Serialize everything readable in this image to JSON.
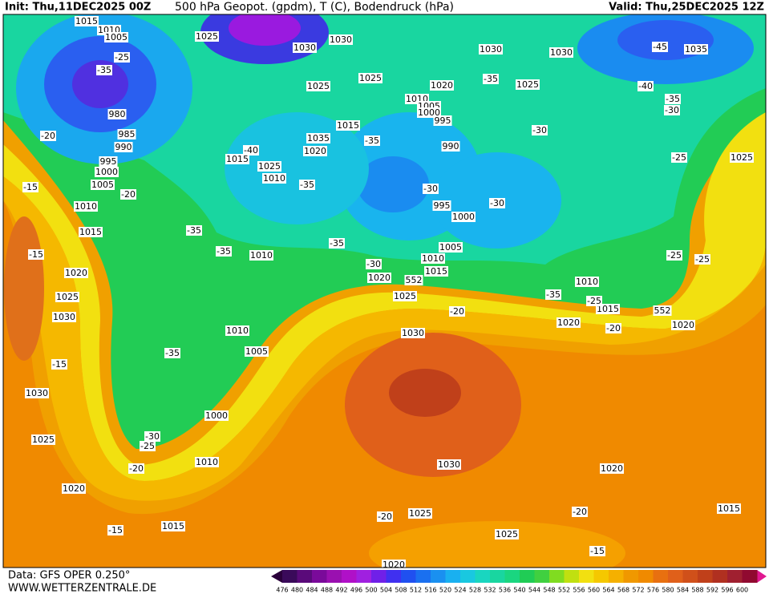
{
  "header": {
    "init": "Init: Thu,11DEC2025 00Z",
    "title": "500 hPa Geopot. (gpdm), T (C), Bodendruck (hPa)",
    "valid": "Valid: Thu,25DEC2025 12Z"
  },
  "footer": {
    "source": "Data: GFS OPER 0.250°",
    "website": "WWW.WETTERZENTRALE.DE"
  },
  "colorbar": {
    "labels": [
      "476",
      "480",
      "484",
      "488",
      "492",
      "496",
      "500",
      "504",
      "508",
      "512",
      "516",
      "520",
      "524",
      "528",
      "532",
      "536",
      "540",
      "544",
      "548",
      "552",
      "556",
      "560",
      "564",
      "568",
      "572",
      "576",
      "580",
      "584",
      "588",
      "592",
      "596",
      "600"
    ]
  },
  "pressure_labels": [
    "1015",
    "1010",
    "1005",
    "1025",
    "1030",
    "1030",
    "1030",
    "1030",
    "1035",
    "1025",
    "1025",
    "1020",
    "1025",
    "1010",
    "1005",
    "1000",
    "995",
    "1015",
    "1035",
    "1020",
    "1015",
    "1025",
    "1010",
    "990",
    "995",
    "1000",
    "1005",
    "1010",
    "1015",
    "1020",
    "1025",
    "1010",
    "1010",
    "1015",
    "1020",
    "1020",
    "1030",
    "1010",
    "1005",
    "1000",
    "1010",
    "1030",
    "1020",
    "1025",
    "1025",
    "1015",
    "1015",
    "1020",
    "1025",
    "1030",
    "1030",
    "1025",
    "1020",
    "1015",
    "1010",
    "1005",
    "1000",
    "995",
    "990",
    "985",
    "980",
    "1025",
    "552",
    "552",
    "1020"
  ],
  "temperature_labels": [
    "-45",
    "-40",
    "-35",
    "-30",
    "-35",
    "-30",
    "-30",
    "-35",
    "-30",
    "-25",
    "-25",
    "-25",
    "-35",
    "-35",
    "-35",
    "-35",
    "-40",
    "-30",
    "-35",
    "-25",
    "-20",
    "-20",
    "-35",
    "-20",
    "-15",
    "-15",
    "-15",
    "-30",
    "-25",
    "-20",
    "-15",
    "-20",
    "-20",
    "-15",
    "-25",
    "-35",
    "-20"
  ]
}
